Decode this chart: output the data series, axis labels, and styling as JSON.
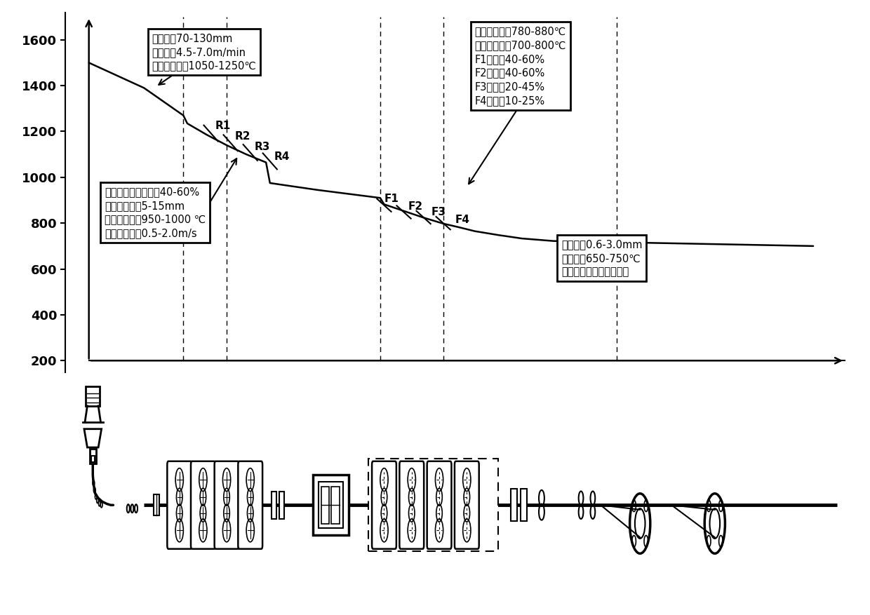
{
  "yticks": [
    200,
    400,
    600,
    800,
    1000,
    1200,
    1400,
    1600
  ],
  "ylim": [
    150,
    1720
  ],
  "xlim": [
    0,
    100
  ],
  "curve_x": [
    3,
    10,
    15,
    15.5,
    18,
    20.5,
    23,
    25.5,
    26,
    28,
    32,
    40,
    40.5,
    43,
    45.5,
    48,
    50,
    52,
    55,
    58,
    62,
    95
  ],
  "curve_y": [
    1500,
    1390,
    1270,
    1235,
    1185,
    1140,
    1100,
    1065,
    975,
    965,
    945,
    910,
    882,
    853,
    824,
    798,
    782,
    765,
    748,
    733,
    722,
    700
  ],
  "dashed_vlines_x": [
    15,
    20.5,
    40,
    48,
    70
  ],
  "box1_text": "铸坑厚度70-130mm\n连铸拉速4.5-7.0m/min\n粗轧入口温度1050-1250℃",
  "box2_text": "粗轧机组道次压下率40-60%\n粗轧出口厚度5-15mm\n粗轧出口温度950-1000 ℃\n粗轧出口速度0.5-2.0m/s",
  "box3_text": "精轧入口温度780-880℃\n精轧出口温度700-800℃\nF1压下率40-60%\nF2压下率40-60%\nF3压下率20-45%\nF4压下率10-25%",
  "box4_text": "成品厚度0.6-3.0mm\n卷取温度650-750℃\n保温罩或保温坑保温处理",
  "R_labels": [
    [
      "R1",
      19,
      1210
    ],
    [
      "R2",
      21.5,
      1165
    ],
    [
      "R3",
      24,
      1118
    ],
    [
      "R4",
      26.5,
      1075
    ]
  ],
  "F_labels": [
    [
      "F1",
      40.5,
      893
    ],
    [
      "F2",
      43.5,
      860
    ],
    [
      "F3",
      46.5,
      835
    ],
    [
      "F4",
      49.5,
      800
    ]
  ],
  "tick_R": [
    [
      18.5,
      1192
    ],
    [
      21,
      1150
    ],
    [
      23.5,
      1108
    ],
    [
      26,
      1070
    ]
  ],
  "tick_F": [
    [
      40.5,
      878
    ],
    [
      43,
      848
    ],
    [
      45.5,
      825
    ],
    [
      48,
      800
    ]
  ]
}
